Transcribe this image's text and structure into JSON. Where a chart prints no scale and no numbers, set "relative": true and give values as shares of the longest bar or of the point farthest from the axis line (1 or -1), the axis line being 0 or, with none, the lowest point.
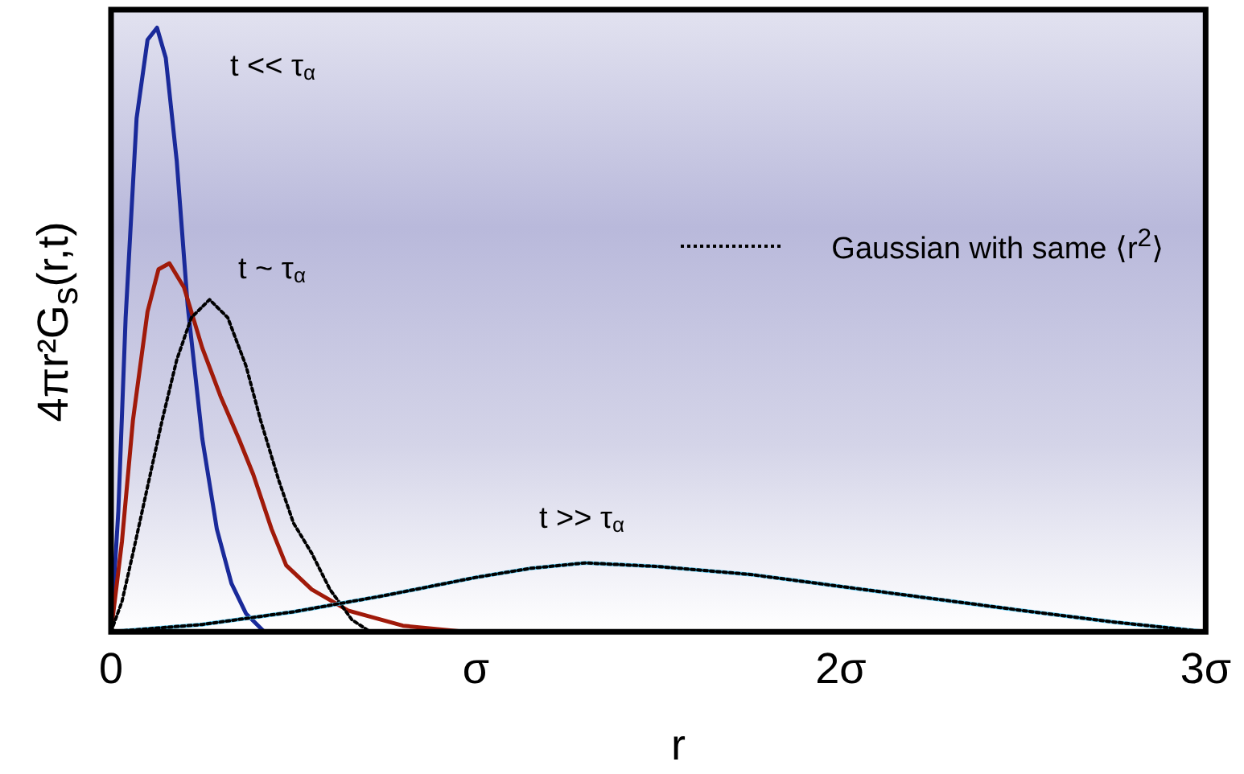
{
  "chart_data": {
    "type": "line",
    "relative": true,
    "xlabel": "r",
    "ylabel": "4πr²G$_{s}$(r,t)",
    "xlim": [
      0,
      3
    ],
    "xticks": [
      0,
      {
        "value": 1,
        "label": "σ"
      },
      {
        "value": 2,
        "label": "2σ"
      },
      {
        "value": 3,
        "label": "3σ"
      }
    ],
    "grid": false,
    "marker": "none",
    "legend": "top right",
    "series": [
      {
        "color": "#1a2a9a",
        "line_style": "solid",
        "x": [
          0,
          0.02,
          0.04,
          0.07,
          0.1,
          0.126,
          0.15,
          0.18,
          0.21,
          0.25,
          0.29,
          0.33,
          0.37,
          0.42
        ],
        "values": [
          0,
          0.2,
          0.52,
          0.85,
          0.98,
          1,
          0.95,
          0.78,
          0.54,
          0.32,
          0.17,
          0.08,
          0.03,
          0
        ]
      },
      {
        "color": "#a01a0a",
        "line_style": "solid",
        "x": [
          0,
          0.03,
          0.06,
          0.1,
          0.13,
          0.16,
          0.2,
          0.25,
          0.3,
          0.35,
          0.39,
          0.44,
          0.48,
          0.55,
          0.65,
          0.8,
          0.97
        ],
        "values": [
          0,
          0.15,
          0.35,
          0.53,
          0.6,
          0.61,
          0.57,
          0.47,
          0.39,
          0.32,
          0.26,
          0.17,
          0.11,
          0.07,
          0.035,
          0.01,
          0
        ]
      },
      {
        "name": "Gaussian with same ⟨r$^{2}$⟩",
        "color": "#000000",
        "line_style": "dotted",
        "x": [
          0,
          0.03,
          0.06,
          0.1,
          0.14,
          0.18,
          0.22,
          0.27,
          0.32,
          0.37,
          0.41,
          0.46,
          0.5,
          0.55,
          0.6,
          0.66,
          0.71
        ],
        "values": [
          0,
          0.05,
          0.13,
          0.24,
          0.35,
          0.45,
          0.52,
          0.55,
          0.52,
          0.44,
          0.35,
          0.25,
          0.18,
          0.13,
          0.07,
          0.02,
          0
        ]
      },
      {
        "color": "#5bc8f0",
        "line_style": "solid",
        "x": [
          0,
          0.25,
          0.5,
          0.75,
          1,
          1.15,
          1.3,
          1.5,
          1.75,
          2,
          2.25,
          2.5,
          2.75,
          3
        ],
        "values": [
          0,
          0.012,
          0.033,
          0.06,
          0.09,
          0.105,
          0.114,
          0.108,
          0.095,
          0.075,
          0.055,
          0.035,
          0.016,
          0
        ]
      },
      {
        "color": "#000000",
        "line_style": "dotted",
        "x": [
          0,
          0.25,
          0.5,
          0.75,
          1,
          1.15,
          1.3,
          1.5,
          1.75,
          2,
          2.25,
          2.5,
          2.75,
          3
        ],
        "values": [
          0,
          0.012,
          0.033,
          0.06,
          0.09,
          0.105,
          0.114,
          0.108,
          0.095,
          0.075,
          0.055,
          0.035,
          0.016,
          0
        ]
      }
    ],
    "annotations": [
      "t << τ$_{α}$",
      "t ~ τ$_{α}$",
      "t >> τ$_{α}$"
    ]
  }
}
